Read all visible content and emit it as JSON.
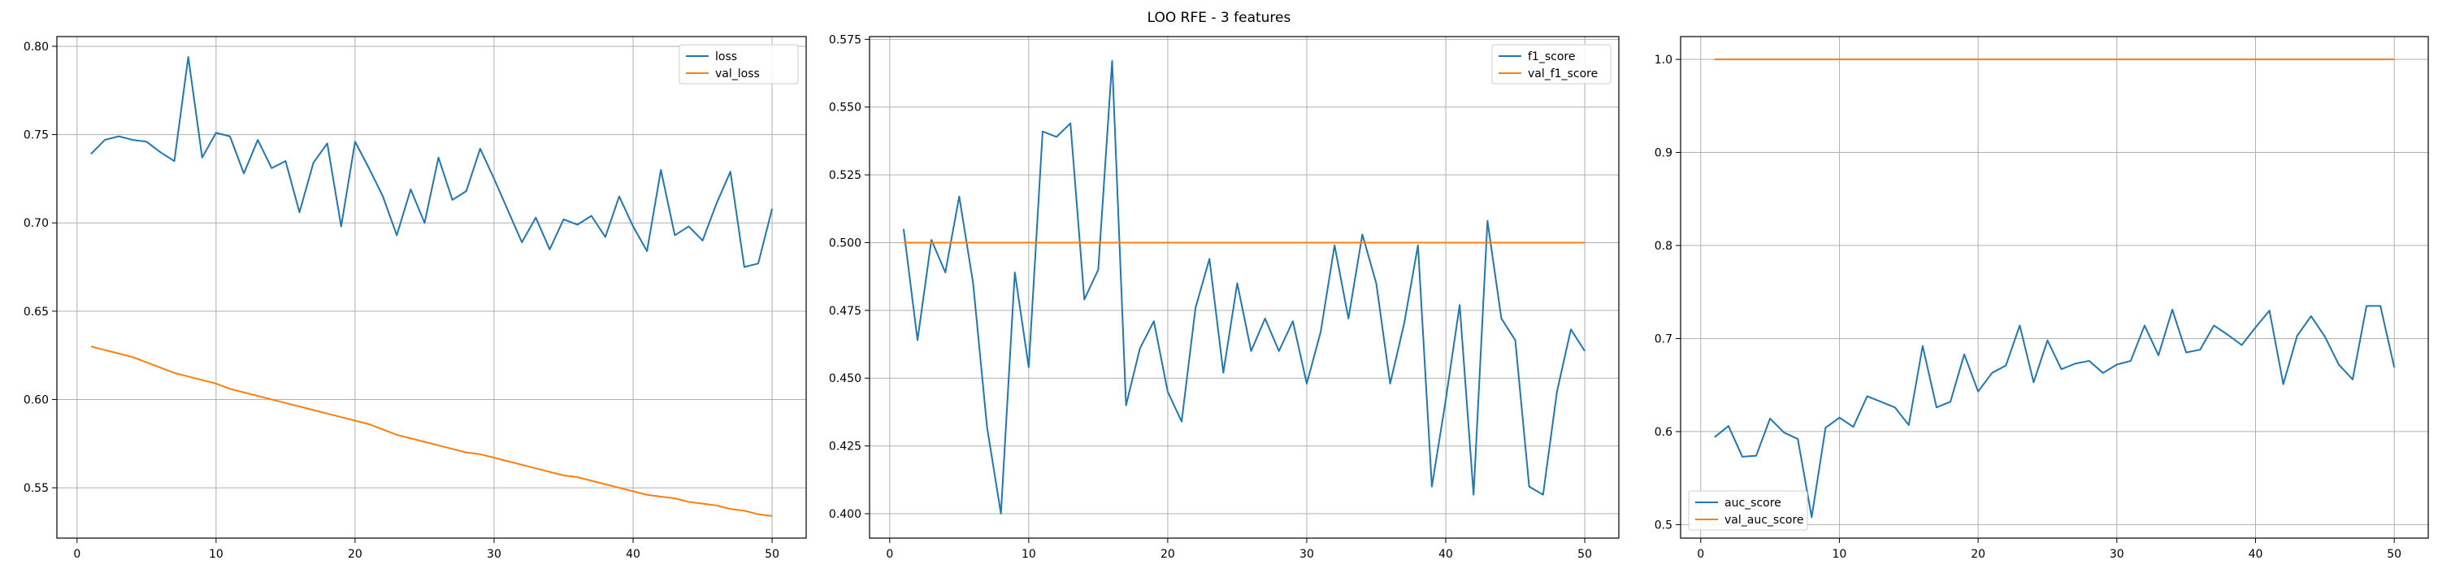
{
  "figure": {
    "title": "LOO RFE - 3 features"
  },
  "colors": {
    "series1": "#1f77b4",
    "series2": "#ff7f0e",
    "grid": "#b0b0b0",
    "axes": "#000000"
  },
  "chart_data": [
    {
      "type": "line",
      "title": "",
      "xlabel": "",
      "ylabel": "",
      "grid": true,
      "legend_position": "top-right",
      "xlim": [
        -1.45,
        52.45
      ],
      "ylim": [
        0.5215,
        0.8055
      ],
      "xticks": [
        0,
        10,
        20,
        30,
        40,
        50
      ],
      "yticks": [
        0.55,
        0.6,
        0.65,
        0.7,
        0.75,
        0.8
      ],
      "ytick_labels": [
        "0.55",
        "0.60",
        "0.65",
        "0.70",
        "0.75",
        "0.80"
      ],
      "x": [
        1,
        2,
        3,
        4,
        5,
        6,
        7,
        8,
        9,
        10,
        11,
        12,
        13,
        14,
        15,
        16,
        17,
        18,
        19,
        20,
        21,
        22,
        23,
        24,
        25,
        26,
        27,
        28,
        29,
        30,
        31,
        32,
        33,
        34,
        35,
        36,
        37,
        38,
        39,
        40,
        41,
        42,
        43,
        44,
        45,
        46,
        47,
        48,
        49,
        50
      ],
      "series": [
        {
          "name": "loss",
          "values": [
            0.739,
            0.747,
            0.749,
            0.747,
            0.746,
            0.74,
            0.735,
            0.794,
            0.737,
            0.751,
            0.749,
            0.728,
            0.747,
            0.731,
            0.735,
            0.706,
            0.734,
            0.745,
            0.698,
            0.746,
            0.731,
            0.715,
            0.693,
            0.719,
            0.7,
            0.737,
            0.713,
            0.718,
            0.742,
            0.725,
            0.707,
            0.689,
            0.703,
            0.685,
            0.702,
            0.699,
            0.704,
            0.692,
            0.715,
            0.698,
            0.684,
            0.73,
            0.693,
            0.698,
            0.69,
            0.711,
            0.729,
            0.675,
            0.677,
            0.708
          ]
        },
        {
          "name": "val_loss",
          "values": [
            0.63,
            0.628,
            0.626,
            0.624,
            0.621,
            0.618,
            0.615,
            0.613,
            0.611,
            0.609,
            0.606,
            0.604,
            0.602,
            0.6,
            0.598,
            0.596,
            0.594,
            0.592,
            0.59,
            0.588,
            0.586,
            0.583,
            0.58,
            0.578,
            0.576,
            0.574,
            0.572,
            0.57,
            0.569,
            0.567,
            0.565,
            0.563,
            0.561,
            0.559,
            0.557,
            0.556,
            0.554,
            0.552,
            0.55,
            0.548,
            0.546,
            0.545,
            0.544,
            0.542,
            0.541,
            0.54,
            0.538,
            0.537,
            0.535,
            0.534
          ]
        }
      ]
    },
    {
      "type": "line",
      "title": "",
      "xlabel": "",
      "ylabel": "",
      "grid": true,
      "legend_position": "top-right",
      "xlim": [
        -1.45,
        52.45
      ],
      "ylim": [
        0.391,
        0.576
      ],
      "xticks": [
        0,
        10,
        20,
        30,
        40,
        50
      ],
      "yticks": [
        0.4,
        0.425,
        0.45,
        0.475,
        0.5,
        0.525,
        0.55,
        0.575
      ],
      "ytick_labels": [
        "0.400",
        "0.425",
        "0.450",
        "0.475",
        "0.500",
        "0.525",
        "0.550",
        "0.575"
      ],
      "x": [
        1,
        2,
        3,
        4,
        5,
        6,
        7,
        8,
        9,
        10,
        11,
        12,
        13,
        14,
        15,
        16,
        17,
        18,
        19,
        20,
        21,
        22,
        23,
        24,
        25,
        26,
        27,
        28,
        29,
        30,
        31,
        32,
        33,
        34,
        35,
        36,
        37,
        38,
        39,
        40,
        41,
        42,
        43,
        44,
        45,
        46,
        47,
        48,
        49,
        50
      ],
      "series": [
        {
          "name": "f1_score",
          "values": [
            0.505,
            0.464,
            0.501,
            0.489,
            0.517,
            0.485,
            0.432,
            0.4,
            0.489,
            0.454,
            0.541,
            0.539,
            0.544,
            0.479,
            0.49,
            0.567,
            0.44,
            0.461,
            0.471,
            0.445,
            0.434,
            0.476,
            0.494,
            0.452,
            0.485,
            0.46,
            0.472,
            0.46,
            0.471,
            0.448,
            0.467,
            0.499,
            0.472,
            0.503,
            0.485,
            0.448,
            0.47,
            0.499,
            0.41,
            0.442,
            0.477,
            0.407,
            0.508,
            0.472,
            0.464,
            0.41,
            0.407,
            0.445,
            0.468,
            0.46
          ]
        },
        {
          "name": "val_f1_score",
          "values": [
            0.5,
            0.5,
            0.5,
            0.5,
            0.5,
            0.5,
            0.5,
            0.5,
            0.5,
            0.5,
            0.5,
            0.5,
            0.5,
            0.5,
            0.5,
            0.5,
            0.5,
            0.5,
            0.5,
            0.5,
            0.5,
            0.5,
            0.5,
            0.5,
            0.5,
            0.5,
            0.5,
            0.5,
            0.5,
            0.5,
            0.5,
            0.5,
            0.5,
            0.5,
            0.5,
            0.5,
            0.5,
            0.5,
            0.5,
            0.5,
            0.5,
            0.5,
            0.5,
            0.5,
            0.5,
            0.5,
            0.5,
            0.5,
            0.5,
            0.5
          ]
        }
      ]
    },
    {
      "type": "line",
      "title": "",
      "xlabel": "",
      "ylabel": "",
      "grid": true,
      "legend_position": "bottom-left",
      "xlim": [
        -1.45,
        52.45
      ],
      "ylim": [
        0.4855,
        1.0245
      ],
      "xticks": [
        0,
        10,
        20,
        30,
        40,
        50
      ],
      "yticks": [
        0.5,
        0.6,
        0.7,
        0.8,
        0.9,
        1.0
      ],
      "ytick_labels": [
        "0.5",
        "0.6",
        "0.7",
        "0.8",
        "0.9",
        "1.0"
      ],
      "x": [
        1,
        2,
        3,
        4,
        5,
        6,
        7,
        8,
        9,
        10,
        11,
        12,
        13,
        14,
        15,
        16,
        17,
        18,
        19,
        20,
        21,
        22,
        23,
        24,
        25,
        26,
        27,
        28,
        29,
        30,
        31,
        32,
        33,
        34,
        35,
        36,
        37,
        38,
        39,
        40,
        41,
        42,
        43,
        44,
        45,
        46,
        47,
        48,
        49,
        50
      ],
      "series": [
        {
          "name": "auc_score",
          "values": [
            0.594,
            0.606,
            0.573,
            0.574,
            0.614,
            0.599,
            0.592,
            0.508,
            0.604,
            0.615,
            0.605,
            0.638,
            0.632,
            0.626,
            0.607,
            0.692,
            0.626,
            0.632,
            0.683,
            0.643,
            0.663,
            0.671,
            0.714,
            0.653,
            0.698,
            0.667,
            0.673,
            0.676,
            0.663,
            0.672,
            0.676,
            0.714,
            0.682,
            0.731,
            0.685,
            0.688,
            0.714,
            0.704,
            0.693,
            0.712,
            0.73,
            0.651,
            0.703,
            0.724,
            0.702,
            0.672,
            0.656,
            0.735,
            0.735,
            0.669
          ]
        },
        {
          "name": "val_auc_score",
          "values": [
            1,
            1,
            1,
            1,
            1,
            1,
            1,
            1,
            1,
            1,
            1,
            1,
            1,
            1,
            1,
            1,
            1,
            1,
            1,
            1,
            1,
            1,
            1,
            1,
            1,
            1,
            1,
            1,
            1,
            1,
            1,
            1,
            1,
            1,
            1,
            1,
            1,
            1,
            1,
            1,
            1,
            1,
            1,
            1,
            1,
            1,
            1,
            1,
            1,
            1
          ]
        }
      ]
    }
  ]
}
